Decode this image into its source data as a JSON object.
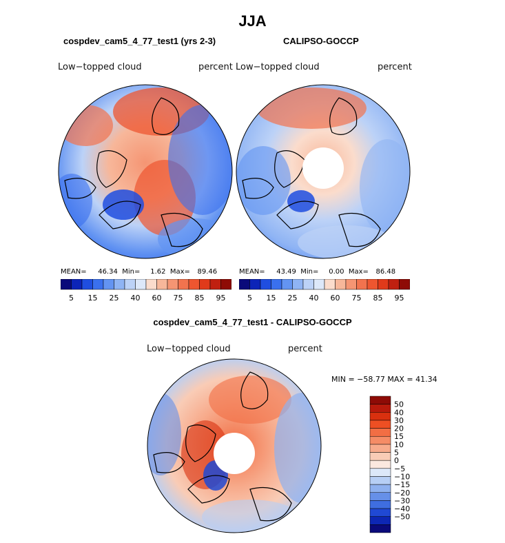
{
  "title": "JJA",
  "panels": [
    {
      "title": "cospdev_cam5_4_77_test1 (yrs 2-3)",
      "variable": "Low−topped cloud",
      "units": "percent",
      "stats": {
        "mean_label": "MEAN=",
        "mean": "46.34",
        "min_label": "Min=",
        "min": "1.62",
        "max_label": "Max=",
        "max": "89.46"
      },
      "has_hole": false
    },
    {
      "title": "CALIPSO-GOCCP",
      "variable": "Low−topped cloud",
      "units": "percent",
      "stats": {
        "mean_label": "MEAN=",
        "mean": "43.49",
        "min_label": "Min=",
        "min": "0.00",
        "max_label": "Max=",
        "max": "86.48"
      },
      "has_hole": true
    }
  ],
  "abs_colorbar": {
    "colors": [
      "#0a0a7a",
      "#0c24b8",
      "#1f4ee0",
      "#3a70ee",
      "#6394f2",
      "#8fb4f4",
      "#bcd2f7",
      "#dde8f9",
      "#fbdccc",
      "#f7b79a",
      "#f59573",
      "#f2734e",
      "#ee5630",
      "#e03a1a",
      "#c02010",
      "#8e0b06"
    ],
    "tick_labels": [
      "5",
      "15",
      "25",
      "40",
      "60",
      "75",
      "85",
      "95"
    ]
  },
  "diff": {
    "title": "cospdev_cam5_4_77_test1 - CALIPSO-GOCCP",
    "variable": "Low−topped cloud",
    "units": "percent",
    "minmax_text": "MIN = −58.77 MAX =  41.34",
    "colorbar": {
      "colors_top_to_bottom": [
        "#8e0b06",
        "#b81a0c",
        "#d9300f",
        "#ee4f23",
        "#f26e44",
        "#f58c66",
        "#f7ab8c",
        "#f9ccb6",
        "#fbe8df",
        "#dce8f9",
        "#b7cff5",
        "#8fb1ef",
        "#6690e8",
        "#3f6ee0",
        "#2049d4",
        "#0d27b4",
        "#0a0a7a"
      ],
      "tick_labels": [
        "50",
        "40",
        "30",
        "20",
        "15",
        "10",
        "5",
        "0",
        "−5",
        "−10",
        "−15",
        "−20",
        "−30",
        "−40",
        "−50"
      ]
    }
  }
}
